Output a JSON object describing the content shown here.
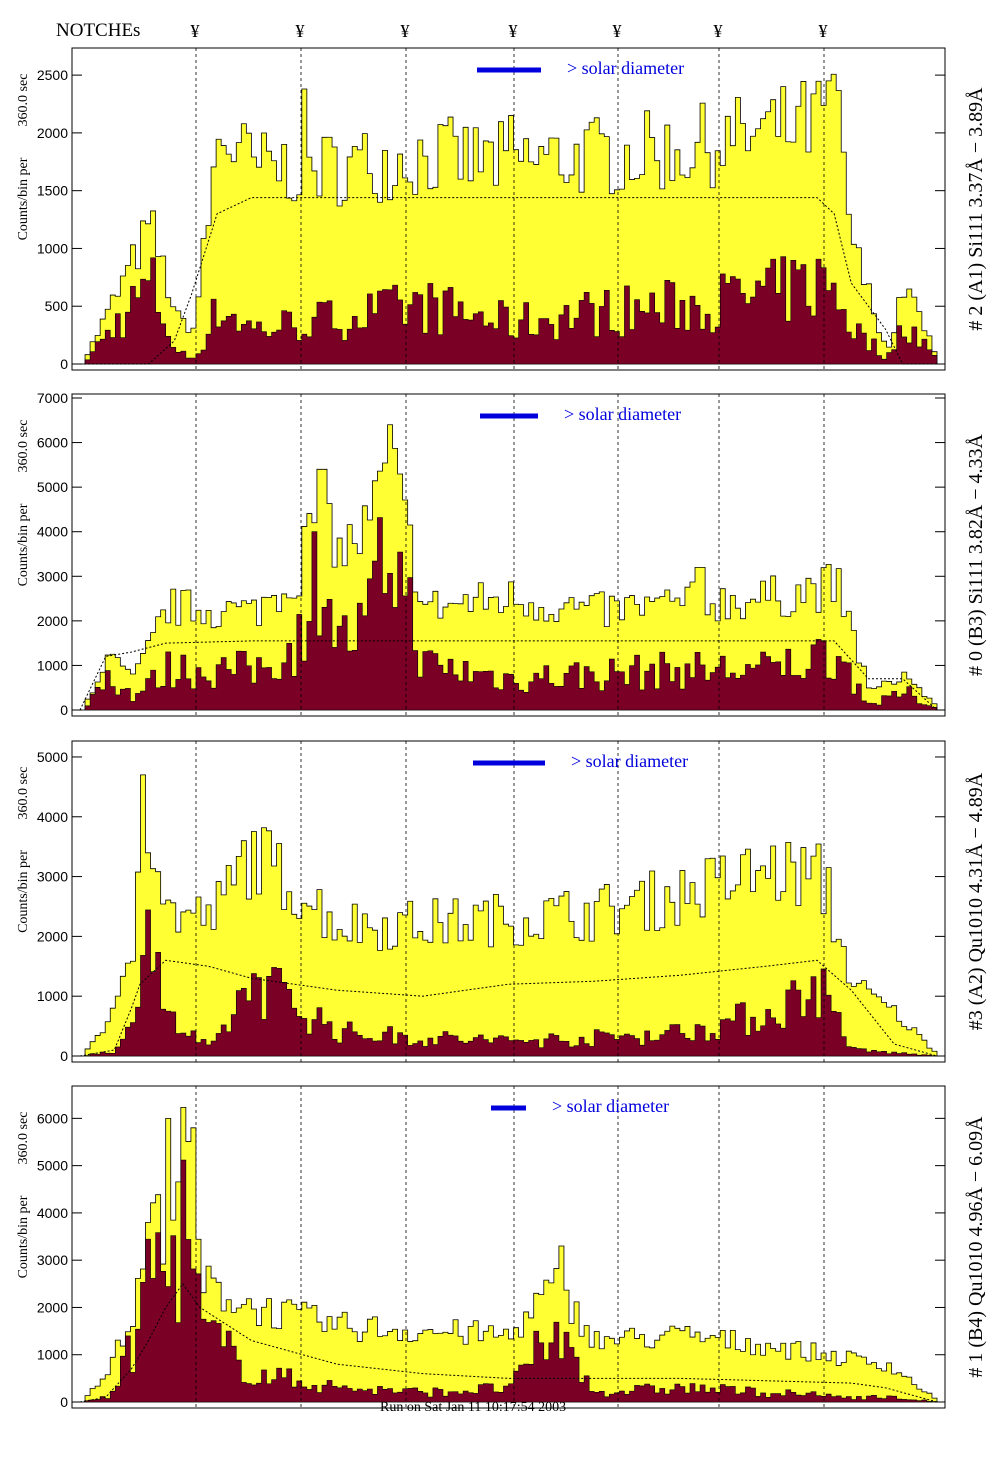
{
  "header": {
    "notches_label": "NOTCHEs",
    "notch_symbol": "¥"
  },
  "footer": {
    "timestamp": "Run on Sat Jan 11 10:17:54 2003"
  },
  "colors": {
    "fill_high": "#ffff33",
    "fill_low": "#7a0026",
    "solar_bar": "#0000dd",
    "label_blue": "#0000cc"
  },
  "notches_x": [
    192,
    297,
    402,
    510,
    614,
    715,
    820
  ],
  "chart_data": [
    {
      "type": "area",
      "panel": 1,
      "ylabel_top": "360.0 sec",
      "ylabel": "Counts/bin per",
      "title": "# 2 (A1) Si111  3.37Å − 3.89Å",
      "annotation": "> solar diameter",
      "ylim": [
        0,
        2700
      ],
      "yticks": [
        0,
        500,
        1000,
        1500,
        2000,
        2500
      ],
      "x": [
        0,
        0.08,
        0.11,
        0.13,
        0.16,
        0.2,
        0.3,
        0.4,
        0.5,
        0.6,
        0.7,
        0.8,
        0.86,
        0.88,
        0.9,
        0.94,
        0.96,
        1.0
      ],
      "high": [
        0,
        1200,
        400,
        300,
        2000,
        1700,
        1700,
        1800,
        1750,
        1800,
        1850,
        2000,
        2100,
        2200,
        1000,
        100,
        700,
        0
      ],
      "low": [
        0,
        700,
        100,
        50,
        500,
        300,
        400,
        500,
        350,
        450,
        500,
        600,
        700,
        650,
        300,
        50,
        400,
        0
      ],
      "model": [
        0,
        0,
        200,
        600,
        1300,
        1440,
        1440,
        1440,
        1440,
        1440,
        1440,
        1440,
        1440,
        1300,
        700,
        300,
        0,
        0
      ],
      "spikes": [
        {
          "x": 0.26,
          "v": 2380
        },
        {
          "x": 0.87,
          "v": 2450
        },
        {
          "x": 0.5,
          "v": 2150
        }
      ]
    },
    {
      "type": "area",
      "panel": 2,
      "ylabel_top": "360.0 sec",
      "ylabel": "Counts/bin per",
      "title": "# 0 (B3) Si111  3.82Å − 4.33Å",
      "annotation": "> solar diameter",
      "ylim": [
        0,
        7000
      ],
      "yticks": [
        0,
        1000,
        2000,
        3000,
        4000,
        5000,
        6000,
        7000
      ],
      "x": [
        0,
        0.03,
        0.06,
        0.1,
        0.2,
        0.25,
        0.28,
        0.3,
        0.33,
        0.36,
        0.4,
        0.5,
        0.6,
        0.7,
        0.8,
        0.88,
        0.92,
        0.96,
        1.0
      ],
      "high": [
        0,
        1200,
        700,
        2300,
        2200,
        3000,
        5000,
        3500,
        4000,
        5500,
        2300,
        2500,
        2200,
        2400,
        2500,
        2800,
        400,
        800,
        0
      ],
      "low": [
        0,
        800,
        300,
        900,
        900,
        1400,
        3500,
        1500,
        1800,
        3800,
        1000,
        700,
        800,
        900,
        900,
        1300,
        100,
        400,
        0
      ],
      "model": [
        0,
        1200,
        1300,
        1500,
        1550,
        1550,
        1550,
        1550,
        1550,
        1550,
        1550,
        1550,
        1550,
        1550,
        1550,
        1550,
        700,
        700,
        0
      ],
      "spikes": [
        {
          "x": 0.36,
          "v": 6400
        },
        {
          "x": 0.28,
          "v": 5400
        },
        {
          "x": 0.72,
          "v": 3200
        }
      ]
    },
    {
      "type": "area",
      "panel": 3,
      "ylabel_top": "360.0 sec",
      "ylabel": "Counts/bin per",
      "title": "#3 (A2) Qu1010  4.31Å − 4.89Å",
      "annotation": "> solar diameter",
      "ylim": [
        0,
        5200
      ],
      "yticks": [
        0,
        1000,
        2000,
        3000,
        4000,
        5000
      ],
      "x": [
        0,
        0.04,
        0.06,
        0.07,
        0.1,
        0.15,
        0.2,
        0.3,
        0.4,
        0.5,
        0.6,
        0.7,
        0.8,
        0.86,
        0.9,
        0.95,
        1.0
      ],
      "high": [
        0,
        800,
        1800,
        4600,
        2400,
        2300,
        3400,
        2200,
        2200,
        2300,
        2400,
        2700,
        3100,
        3000,
        1200,
        700,
        0
      ],
      "low": [
        0,
        100,
        500,
        2900,
        600,
        100,
        1300,
        400,
        300,
        250,
        300,
        400,
        700,
        1200,
        100,
        50,
        0
      ],
      "model": [
        0,
        100,
        800,
        1200,
        1600,
        1500,
        1300,
        1100,
        1000,
        1200,
        1250,
        1350,
        1500,
        1600,
        1100,
        200,
        0
      ],
      "spikes": [
        {
          "x": 0.07,
          "v": 4700
        },
        {
          "x": 0.19,
          "v": 3600
        },
        {
          "x": 0.87,
          "v": 3150
        }
      ]
    },
    {
      "type": "area",
      "panel": 4,
      "ylabel_top": "360.0 sec",
      "ylabel": "Counts/bin per",
      "title": "# 1 (B4) Qu1010 4.96Å − 6.09Å",
      "annotation": "> solar diameter",
      "ylim": [
        0,
        6600
      ],
      "yticks": [
        0,
        1000,
        2000,
        3000,
        4000,
        5000,
        6000
      ],
      "x": [
        0,
        0.03,
        0.06,
        0.08,
        0.1,
        0.12,
        0.14,
        0.2,
        0.3,
        0.4,
        0.5,
        0.55,
        0.6,
        0.7,
        0.8,
        0.9,
        0.94,
        1.0
      ],
      "high": [
        0,
        700,
        1800,
        4000,
        3500,
        5500,
        2500,
        2000,
        1600,
        1500,
        1400,
        2500,
        1300,
        1400,
        1200,
        900,
        800,
        0
      ],
      "low": [
        0,
        100,
        1200,
        3200,
        2500,
        3800,
        1500,
        600,
        300,
        200,
        300,
        1500,
        200,
        300,
        200,
        100,
        100,
        0
      ],
      "model": [
        0,
        100,
        700,
        1300,
        2000,
        2500,
        2000,
        1300,
        800,
        600,
        500,
        500,
        500,
        500,
        450,
        400,
        300,
        0
      ],
      "spikes": [
        {
          "x": 0.1,
          "v": 6000
        },
        {
          "x": 0.13,
          "v": 5800
        },
        {
          "x": 0.56,
          "v": 3300
        }
      ]
    }
  ]
}
